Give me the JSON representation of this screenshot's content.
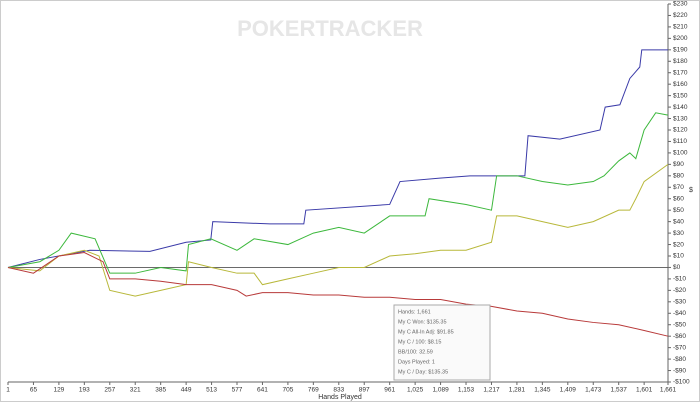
{
  "chart_data": {
    "type": "line",
    "watermark": "POKERTRACKER",
    "xlabel": "Hands Played",
    "ylabel": "$",
    "xlim": [
      1,
      1661
    ],
    "ylim": [
      -100,
      230
    ],
    "xticks": [
      1,
      65,
      129,
      193,
      257,
      321,
      385,
      449,
      513,
      577,
      641,
      705,
      769,
      833,
      897,
      961,
      {
        "value": 1025,
        "label": "1,025"
      },
      {
        "value": 1089,
        "label": "1,089"
      },
      {
        "value": 1153,
        "label": "1,153"
      },
      {
        "value": 1217,
        "label": "1,217"
      },
      {
        "value": 1281,
        "label": "1,281"
      },
      {
        "value": 1345,
        "label": "1,345"
      },
      {
        "value": 1409,
        "label": "1,409"
      },
      {
        "value": 1473,
        "label": "1,473"
      },
      {
        "value": 1537,
        "label": "1,537"
      },
      {
        "value": 1601,
        "label": "1,601"
      },
      {
        "value": 1661,
        "label": "1,661"
      }
    ],
    "yticks": [
      {
        "value": 230,
        "label": "$230"
      },
      {
        "value": 220,
        "label": "$220"
      },
      {
        "value": 210,
        "label": "$210"
      },
      {
        "value": 200,
        "label": "$200"
      },
      {
        "value": 190,
        "label": "$190"
      },
      {
        "value": 180,
        "label": "$180"
      },
      {
        "value": 170,
        "label": "$170"
      },
      {
        "value": 160,
        "label": "$160"
      },
      {
        "value": 150,
        "label": "$150"
      },
      {
        "value": 140,
        "label": "$140"
      },
      {
        "value": 130,
        "label": "$130"
      },
      {
        "value": 120,
        "label": "$120"
      },
      {
        "value": 110,
        "label": "$110"
      },
      {
        "value": 100,
        "label": "$100"
      },
      {
        "value": 90,
        "label": "$90"
      },
      {
        "value": 80,
        "label": "$80"
      },
      {
        "value": 70,
        "label": "$70"
      },
      {
        "value": 60,
        "label": "$60"
      },
      {
        "value": 50,
        "label": "$50"
      },
      {
        "value": 40,
        "label": "$40"
      },
      {
        "value": 30,
        "label": "$30"
      },
      {
        "value": 20,
        "label": "$20"
      },
      {
        "value": 10,
        "label": "$10"
      },
      {
        "value": 0,
        "label": "$0"
      },
      {
        "value": -10,
        "label": "-$10"
      },
      {
        "value": -20,
        "label": "-$20"
      },
      {
        "value": -30,
        "label": "-$30"
      },
      {
        "value": -40,
        "label": "-$40"
      },
      {
        "value": -50,
        "label": "-$50"
      },
      {
        "value": -60,
        "label": "-$60"
      },
      {
        "value": -70,
        "label": "-$70"
      },
      {
        "value": -80,
        "label": "-$80"
      },
      {
        "value": -90,
        "label": "-$90"
      },
      {
        "value": -100,
        "label": "-$100"
      }
    ],
    "series": [
      {
        "color": "#3a3aa8",
        "x": [
          1,
          81,
          207,
          358,
          449,
          511,
          516,
          660,
          745,
          750,
          961,
          987,
          1087,
          1163,
          1301,
          1309,
          1389,
          1490,
          1503,
          1540,
          1565,
          1590,
          1595,
          1661
        ],
        "values": [
          0,
          7,
          15,
          14,
          22,
          24,
          40,
          38,
          38,
          50,
          55,
          75,
          78,
          80,
          80,
          115,
          112,
          120,
          140,
          142,
          165,
          175,
          190,
          190
        ]
      },
      {
        "color": "#3cb83c",
        "x": [
          1,
          81,
          129,
          160,
          220,
          257,
          321,
          385,
          449,
          455,
          511,
          577,
          620,
          705,
          769,
          833,
          897,
          961,
          1050,
          1060,
          1153,
          1217,
          1230,
          1281,
          1345,
          1409,
          1473,
          1500,
          1537,
          1565,
          1580,
          1601,
          1630,
          1661
        ],
        "values": [
          0,
          5,
          15,
          30,
          25,
          -5,
          -5,
          0,
          -3,
          20,
          25,
          15,
          25,
          20,
          30,
          35,
          30,
          45,
          45,
          60,
          55,
          50,
          80,
          80,
          75,
          72,
          75,
          80,
          93,
          100,
          95,
          120,
          135,
          133
        ]
      },
      {
        "color": "#b8b83a",
        "x": [
          1,
          81,
          129,
          193,
          230,
          257,
          321,
          385,
          449,
          455,
          513,
          577,
          620,
          641,
          705,
          769,
          833,
          897,
          961,
          1025,
          1089,
          1153,
          1217,
          1230,
          1281,
          1345,
          1409,
          1473,
          1537,
          1565,
          1580,
          1601,
          1661
        ],
        "values": [
          0,
          -3,
          10,
          15,
          10,
          -20,
          -25,
          -20,
          -15,
          5,
          0,
          -5,
          -5,
          -15,
          -10,
          -5,
          0,
          0,
          10,
          12,
          15,
          15,
          22,
          45,
          45,
          40,
          35,
          40,
          50,
          50,
          60,
          75,
          90
        ]
      },
      {
        "color": "#b83a3a",
        "x": [
          1,
          65,
          129,
          193,
          240,
          257,
          321,
          385,
          449,
          513,
          577,
          600,
          641,
          705,
          769,
          833,
          897,
          961,
          1025,
          1089,
          1153,
          1217,
          1281,
          1345,
          1409,
          1473,
          1537,
          1601,
          1661
        ],
        "values": [
          0,
          -5,
          10,
          13,
          5,
          -10,
          -10,
          -12,
          -15,
          -15,
          -20,
          -25,
          -22,
          -22,
          -24,
          -24,
          -26,
          -26,
          -28,
          -28,
          -32,
          -34,
          -38,
          -40,
          -45,
          -48,
          -50,
          -55,
          -60
        ]
      }
    ],
    "tooltip": [
      "Hands: 1,661",
      "My C Won: $135.35",
      "My C All-In Adj: $91.85",
      "My C / 100: $8.15",
      "BB/100: 32.59",
      "Days Played: 1",
      "My C / Day: $135.35"
    ]
  }
}
